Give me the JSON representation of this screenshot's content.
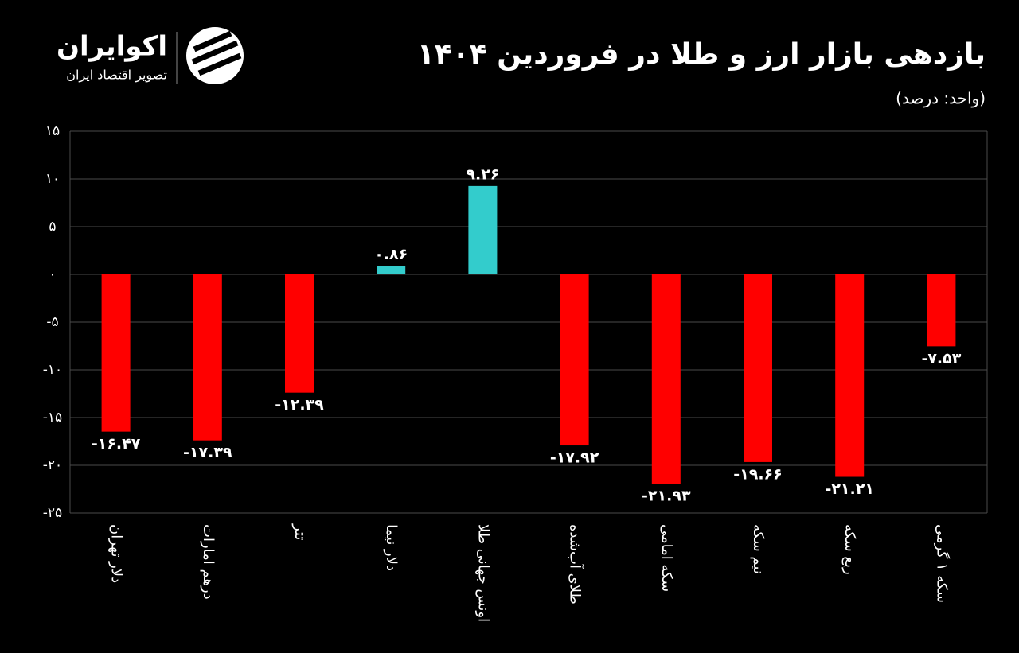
{
  "brand": {
    "name": "اکوایران",
    "tagline": "تصویر اقتصاد ایران"
  },
  "chart_data": {
    "type": "bar",
    "title": "بازدهی  بازار ارز و طلا در فروردین ۱۴۰۴",
    "subtitle": "(واحد: درصد)",
    "categories": [
      "دلار تهران",
      "درهم امارات",
      "تتر",
      "دلار نیما",
      "اونس جهانی طلا",
      "طلای آب‌شده",
      "سکه امامی",
      "نیم سکه",
      "ربع سکه",
      "سکه ۱ گرمی"
    ],
    "values": [
      -16.47,
      -17.39,
      -12.39,
      0.86,
      9.26,
      -17.92,
      -21.93,
      -19.66,
      -21.21,
      -7.53
    ],
    "value_labels": [
      "-۱۶.۴۷",
      "-۱۷.۳۹",
      "-۱۲.۳۹",
      "۰.۸۶",
      "۹.۲۶",
      "-۱۷.۹۲",
      "-۲۱.۹۳",
      "-۱۹.۶۶",
      "-۲۱.۲۱",
      "-۷.۵۳"
    ],
    "colors": [
      "#ff0000",
      "#ff0000",
      "#ff0000",
      "#33cccc",
      "#33cccc",
      "#ff0000",
      "#ff0000",
      "#ff0000",
      "#ff0000",
      "#ff0000"
    ],
    "ylim": [
      -25,
      15
    ],
    "yticks": [
      {
        "value": 15,
        "label": "۱۵"
      },
      {
        "value": 10,
        "label": "۱۰"
      },
      {
        "value": 5,
        "label": "۵"
      },
      {
        "value": 0,
        "label": "۰"
      },
      {
        "value": -5,
        "label": "-۵"
      },
      {
        "value": -10,
        "label": "-۱۰"
      },
      {
        "value": -15,
        "label": "-۱۵"
      },
      {
        "value": -20,
        "label": "-۲۰"
      },
      {
        "value": -25,
        "label": "-۲۵"
      }
    ],
    "grid": true
  }
}
